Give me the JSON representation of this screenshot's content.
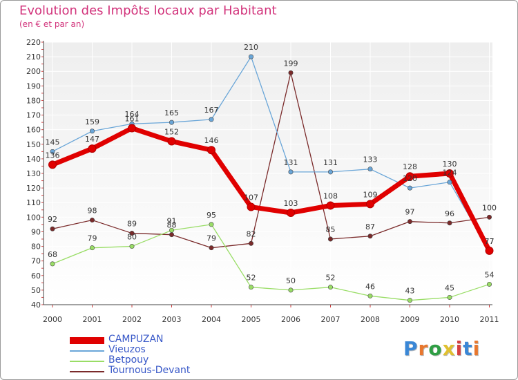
{
  "header": {
    "title": "Evolution des Impôts locaux par Habitant",
    "subtitle": "(en € et par an)"
  },
  "logo": {
    "text": "Proxiti",
    "letter_colors": [
      "#3a87d6",
      "#e8772e",
      "#2f9e44",
      "#e0c030",
      "#d64040",
      "#3a87d6",
      "#e8772e"
    ]
  },
  "chart_data": {
    "type": "line",
    "x": [
      "2000",
      "2001",
      "2002",
      "2003",
      "2004",
      "2005",
      "2006",
      "2007",
      "2008",
      "2009",
      "2010",
      "2011"
    ],
    "ylim": [
      40,
      220
    ],
    "yticks": [
      40,
      50,
      60,
      70,
      80,
      90,
      100,
      110,
      120,
      130,
      140,
      150,
      160,
      170,
      180,
      190,
      200,
      210,
      220
    ],
    "grid": true,
    "legend_position": "bottom-left",
    "series": [
      {
        "name": "CAMPUZAN",
        "color": "#e00000",
        "values": [
          136,
          147,
          161,
          152,
          146,
          107,
          103,
          108,
          109,
          128,
          130,
          77
        ]
      },
      {
        "name": "Vieuzos",
        "color": "#6aa6d8",
        "values": [
          145,
          159,
          164,
          165,
          167,
          210,
          131,
          131,
          133,
          120,
          124,
          77
        ]
      },
      {
        "name": "Betpouy",
        "color": "#99dd66",
        "values": [
          68,
          79,
          80,
          91,
          95,
          52,
          50,
          52,
          46,
          43,
          45,
          54
        ]
      },
      {
        "name": "Tournous-Devant",
        "color": "#7a2a2a",
        "values": [
          92,
          98,
          89,
          88,
          79,
          82,
          199,
          85,
          87,
          97,
          96,
          100
        ]
      }
    ]
  }
}
